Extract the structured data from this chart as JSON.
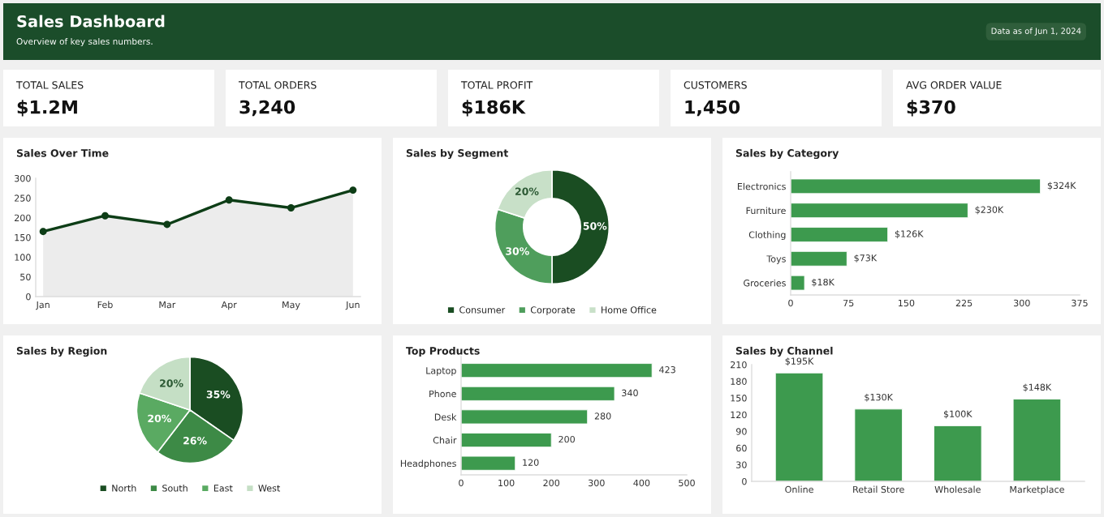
{
  "chart_data": [
    {
      "type": "other",
      "title": "Sales Dashboard",
      "subtitle": "Overview of key sales numbers.",
      "annotations": [
        "Data as of Jun 1, 2024"
      ]
    },
    {
      "type": "other",
      "title": "TOTAL SALES",
      "annotations": [
        "$1.2M"
      ]
    },
    {
      "type": "other",
      "title": "TOTAL ORDERS",
      "annotations": [
        "3,240"
      ]
    },
    {
      "type": "other",
      "title": "TOTAL PROFIT",
      "annotations": [
        "$186K"
      ]
    },
    {
      "type": "other",
      "title": "CUSTOMERS",
      "annotations": [
        "1,450"
      ]
    },
    {
      "type": "other",
      "title": "AVG ORDER VALUE",
      "annotations": [
        "$370"
      ]
    },
    {
      "type": "area",
      "title": "Sales Over Time",
      "categories": [
        "Jan",
        "Feb",
        "Mar",
        "Apr",
        "May",
        "Jun"
      ],
      "series": [
        {
          "color": "#0d3d16",
          "values": [
            165,
            205,
            183,
            245,
            225,
            270
          ]
        }
      ],
      "marker": "circle",
      "ylim": [
        0,
        300
      ],
      "yticks": [
        0,
        50,
        100,
        150,
        200,
        250,
        300
      ]
    },
    {
      "type": "donut",
      "title": "Sales by Segment",
      "categories": [
        "Consumer",
        "Corporate",
        "Home Office"
      ],
      "values": [
        50,
        30,
        20
      ],
      "colors": [
        "#1a4d22",
        "#4f9e5c",
        "#c8e0c8"
      ],
      "value_labels": [
        "50%",
        "30%",
        "20%"
      ],
      "legend": "bottom"
    },
    {
      "type": "bar",
      "orientation": "horizontal",
      "title": "Sales by Category",
      "categories": [
        "Electronics",
        "Furniture",
        "Clothing",
        "Toys",
        "Groceries"
      ],
      "values": [
        324,
        230,
        126,
        73,
        18
      ],
      "color": "#3d9a4e",
      "value_labels": [
        "$324K",
        "$230K",
        "$126K",
        "$73K",
        "$18K"
      ],
      "xlim": [
        0,
        375
      ],
      "xticks": [
        0,
        75,
        150,
        225,
        300,
        375
      ]
    },
    {
      "type": "pie",
      "title": "Sales by Region",
      "categories": [
        "North",
        "South",
        "East",
        "West"
      ],
      "values": [
        35,
        26,
        20,
        20
      ],
      "colors": [
        "#1a4d22",
        "#3d8a46",
        "#5aaa62",
        "#c5dfc5"
      ],
      "value_labels": [
        "35%",
        "26%",
        "20%",
        "20%"
      ],
      "legend": "bottom"
    },
    {
      "type": "bar",
      "orientation": "horizontal",
      "title": "Top Products",
      "categories": [
        "Laptop",
        "Phone",
        "Desk",
        "Chair",
        "Headphones"
      ],
      "values": [
        423,
        340,
        280,
        200,
        120
      ],
      "color": "#3d9a4e",
      "data_labels": true,
      "xlim": [
        0,
        500
      ],
      "xticks": [
        0,
        100,
        200,
        300,
        400,
        500
      ]
    },
    {
      "type": "bar",
      "title": "Sales by Channel",
      "categories": [
        "Online",
        "Retail Store",
        "Wholesale",
        "Marketplace"
      ],
      "values": [
        195,
        130,
        100,
        148
      ],
      "color": "#3d9a4e",
      "value_labels": [
        "$195K",
        "$130K",
        "$100K",
        "$148K"
      ],
      "ylim": [
        0,
        210
      ],
      "yticks": [
        0,
        30,
        60,
        90,
        120,
        150,
        180,
        210
      ]
    }
  ]
}
